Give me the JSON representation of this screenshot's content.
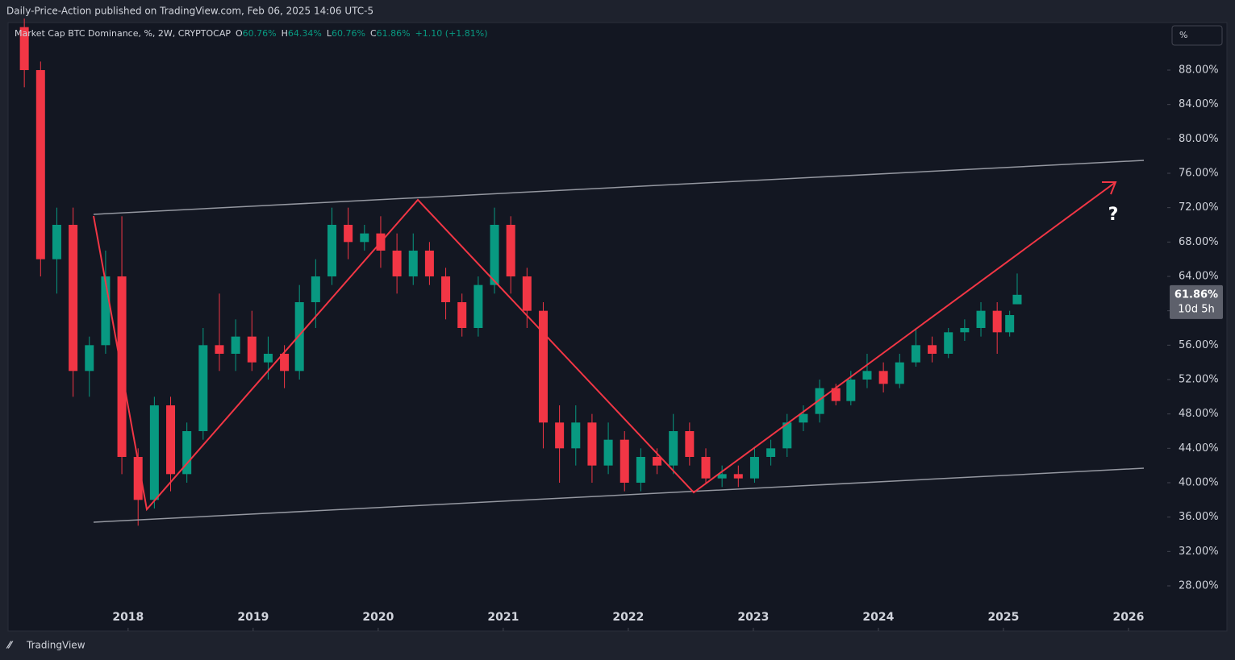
{
  "header": {
    "publisher": "Daily-Price-Action published on TradingView.com, Feb 06, 2025 14:06 UTC-5",
    "brand": "TradingView",
    "scale_button": "%"
  },
  "chart_data": {
    "type": "candlestick",
    "title": "Market Cap BTC Dominance, %, 2W, CRYPTOCAP",
    "legend": [
      {
        "key": "O",
        "label": "60.76%"
      },
      {
        "key": "H",
        "label": "64.34%"
      },
      {
        "key": "L",
        "label": "60.76%"
      },
      {
        "key": "C",
        "label": "61.86%"
      }
    ],
    "change": "+1.10 (+1.81%)",
    "up_color": "#089981",
    "down_color": "#f23645",
    "grid": false,
    "x": [
      2017.17,
      2017.3,
      2017.43,
      2017.56,
      2017.69,
      2017.82,
      2017.95,
      2018.08,
      2018.21,
      2018.34,
      2018.47,
      2018.6,
      2018.73,
      2018.86,
      2018.99,
      2019.12,
      2019.25,
      2019.37,
      2019.5,
      2019.63,
      2019.76,
      2019.89,
      2020.02,
      2020.15,
      2020.28,
      2020.41,
      2020.54,
      2020.67,
      2020.8,
      2020.93,
      2021.06,
      2021.19,
      2021.32,
      2021.45,
      2021.58,
      2021.71,
      2021.84,
      2021.97,
      2022.1,
      2022.23,
      2022.36,
      2022.49,
      2022.62,
      2022.75,
      2022.88,
      2023.01,
      2023.14,
      2023.27,
      2023.4,
      2023.53,
      2023.66,
      2023.78,
      2023.91,
      2024.04,
      2024.17,
      2024.3,
      2024.43,
      2024.56,
      2024.69,
      2024.82,
      2024.95,
      2025.05,
      2025.11
    ],
    "open": [
      93,
      88,
      66,
      70,
      53,
      56,
      64,
      43,
      38,
      49,
      41,
      46,
      56,
      55,
      57,
      54,
      55,
      53,
      61,
      64,
      70,
      68,
      69,
      67,
      64,
      67,
      64,
      61,
      58,
      63,
      70,
      64,
      60,
      47,
      44,
      47,
      42,
      45,
      40,
      43,
      42,
      46,
      43,
      40.5,
      41,
      40.5,
      43,
      44,
      47,
      48,
      51,
      49.5,
      52,
      53,
      51.5,
      54,
      56,
      55,
      57.5,
      58,
      60,
      57.5,
      60.76
    ],
    "high": [
      94,
      89,
      72,
      72,
      57,
      67,
      71,
      44,
      50,
      50,
      47,
      58,
      62,
      59,
      60,
      57,
      56,
      63,
      66,
      72,
      72,
      70,
      71,
      69,
      69,
      68,
      65,
      62,
      64,
      72,
      71,
      65,
      61,
      49,
      49,
      48,
      47,
      46,
      44,
      44,
      48,
      47,
      44,
      42,
      42,
      44,
      45,
      48,
      49,
      52,
      51.5,
      53,
      55,
      54,
      55,
      58,
      57,
      58,
      59,
      61,
      61,
      60,
      64.34
    ],
    "low": [
      86,
      64,
      62,
      50,
      50,
      55,
      41,
      35,
      37,
      39,
      40,
      45,
      53,
      53,
      53,
      52,
      51,
      52,
      58,
      63,
      66,
      67,
      65,
      62,
      63,
      63,
      59,
      57,
      57,
      62,
      62,
      58,
      44,
      40,
      42,
      40,
      41,
      39,
      39,
      41,
      41,
      42,
      40,
      39.5,
      39.5,
      40,
      42,
      43,
      46,
      47,
      49,
      49,
      51,
      50.5,
      51,
      53.5,
      54,
      54.5,
      56.5,
      57,
      55,
      57,
      60.76
    ],
    "close": [
      88,
      66,
      70,
      53,
      56,
      64,
      43,
      38,
      49,
      41,
      46,
      56,
      55,
      57,
      54,
      55,
      53,
      61,
      64,
      70,
      68,
      69,
      67,
      64,
      67,
      64,
      61,
      58,
      63,
      70,
      64,
      60,
      47,
      44,
      47,
      42,
      45,
      40,
      43,
      42,
      46,
      43,
      40.5,
      41,
      40.5,
      43,
      44,
      47,
      48,
      51,
      49.5,
      52,
      53,
      51.5,
      54,
      56,
      55,
      57.5,
      58,
      60,
      57.5,
      59.5,
      61.86
    ],
    "xlim": [
      2017.04,
      2026.31
    ],
    "xticks": [
      2018,
      2019,
      2020,
      2021,
      2022,
      2023,
      2024,
      2025,
      2026
    ],
    "ylim": [
      22.75,
      93.53
    ],
    "yticks": [
      {
        "value": 28,
        "label": "28.00%"
      },
      {
        "value": 32,
        "label": "32.00%"
      },
      {
        "value": 36,
        "label": "36.00%"
      },
      {
        "value": 40,
        "label": "40.00%"
      },
      {
        "value": 44,
        "label": "44.00%"
      },
      {
        "value": 48,
        "label": "48.00%"
      },
      {
        "value": 52,
        "label": "52.00%"
      },
      {
        "value": 56,
        "label": "56.00%"
      },
      {
        "value": 60,
        "label": "60.00%"
      },
      {
        "value": 64,
        "label": "64.00%"
      },
      {
        "value": 68,
        "label": "68.00%"
      },
      {
        "value": 72,
        "label": "72.00%"
      },
      {
        "value": 76,
        "label": "76.00%"
      },
      {
        "value": 80,
        "label": "80.00%"
      },
      {
        "value": 84,
        "label": "84.00%"
      },
      {
        "value": 88,
        "label": "88.00%"
      }
    ],
    "last_price": {
      "value": 61.86,
      "label": "61.86%"
    },
    "countdown": "10d 5h",
    "annotation": "?"
  }
}
